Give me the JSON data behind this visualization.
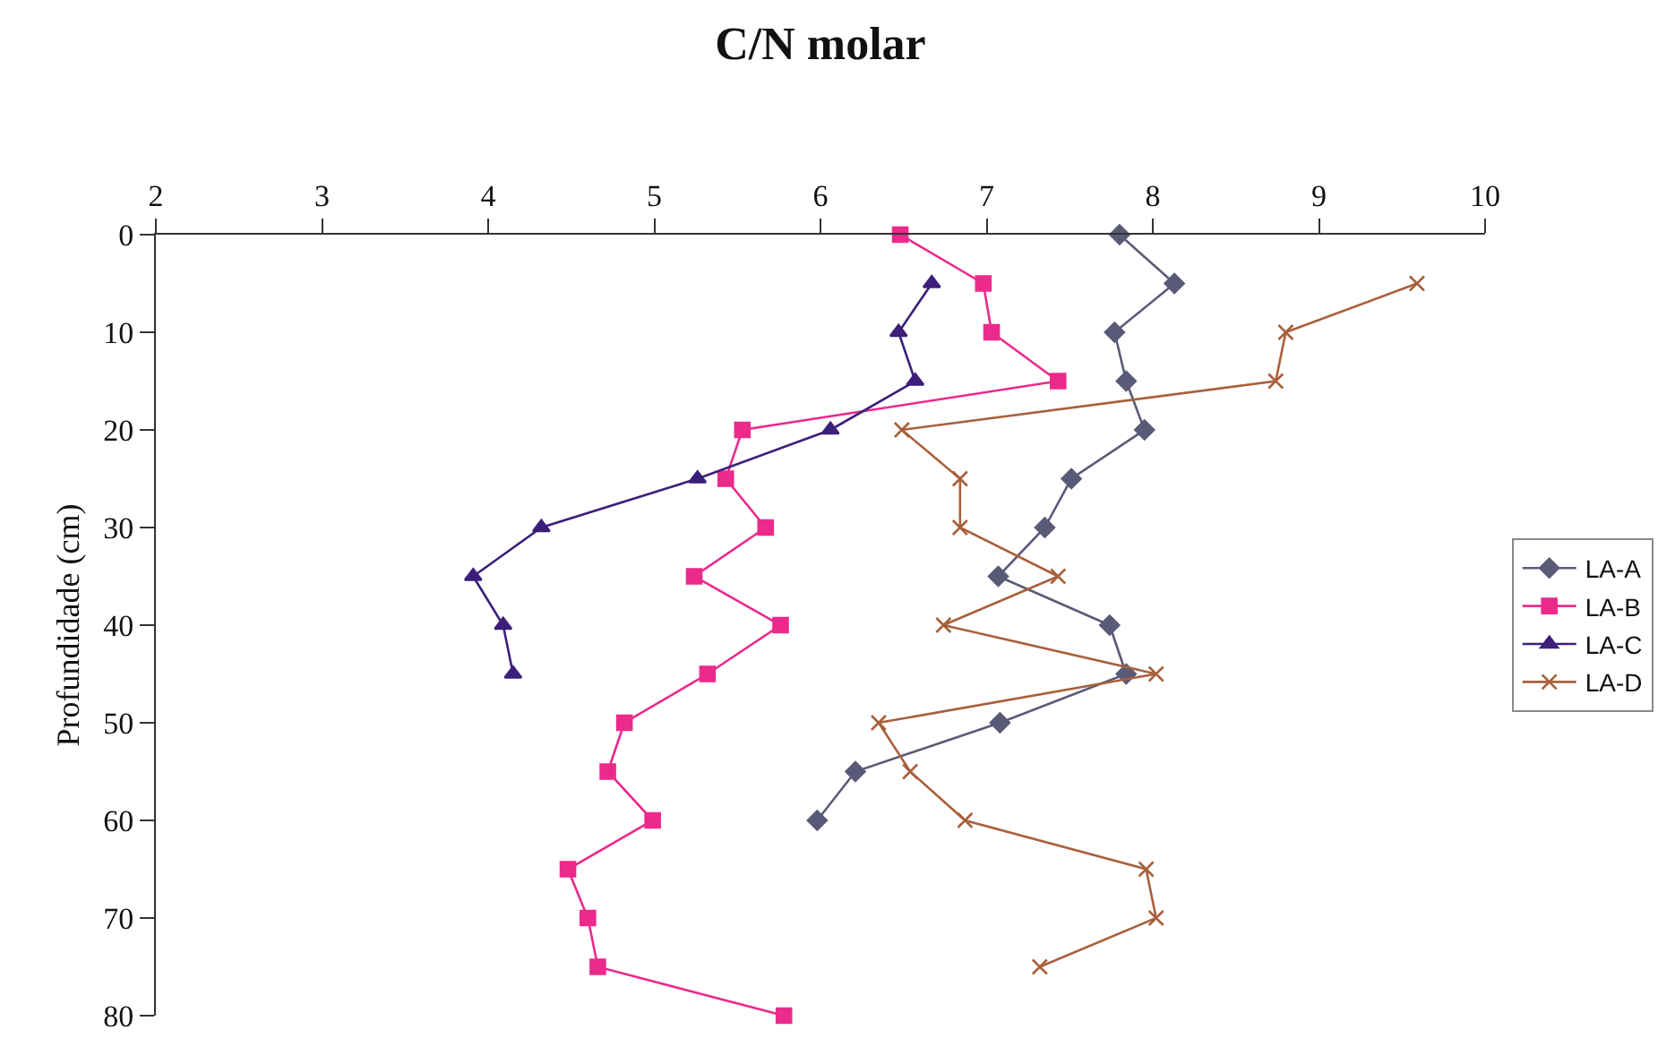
{
  "chart_data": {
    "type": "line",
    "title": "C/N molar",
    "ylabel": "Profundidade (cm)",
    "xlim": [
      2,
      10
    ],
    "xticks": [
      2,
      3,
      4,
      5,
      6,
      7,
      8,
      9,
      10
    ],
    "ylim": [
      80,
      0
    ],
    "yticks": [
      0,
      10,
      20,
      30,
      40,
      50,
      60,
      70,
      80
    ],
    "legend": "right",
    "line_style": "solid",
    "series": [
      {
        "name": "LA-A",
        "color": "#5a5a78",
        "marker": "diamond",
        "x": [
          7.8,
          8.13,
          7.77,
          7.84,
          7.95,
          7.51,
          7.35,
          7.07,
          7.74,
          7.84,
          7.08,
          6.21,
          5.98
        ],
        "values": [
          0,
          5,
          10,
          15,
          20,
          25,
          30,
          35,
          40,
          45,
          50,
          55,
          60
        ]
      },
      {
        "name": "LA-B",
        "color": "#ec2a8c",
        "marker": "square",
        "x": [
          6.48,
          6.98,
          7.03,
          7.43,
          5.53,
          5.43,
          5.67,
          5.24,
          5.76,
          5.32,
          4.82,
          4.72,
          4.99,
          4.48,
          4.6,
          4.66,
          5.78
        ],
        "values": [
          0,
          5,
          10,
          15,
          20,
          25,
          30,
          35,
          40,
          45,
          50,
          55,
          60,
          65,
          70,
          75,
          80
        ]
      },
      {
        "name": "LA-C",
        "color": "#3b1f7a",
        "marker": "triangle",
        "x": [
          6.67,
          6.47,
          6.57,
          6.06,
          5.26,
          4.32,
          3.91,
          4.09,
          4.15
        ],
        "values": [
          5,
          10,
          15,
          20,
          25,
          30,
          35,
          40,
          45
        ]
      },
      {
        "name": "LA-D",
        "color": "#a8603c",
        "marker": "cross",
        "x": [
          9.59,
          8.8,
          8.74,
          6.49,
          6.84,
          6.84,
          7.43,
          6.74,
          8.02,
          6.35,
          6.54,
          6.87,
          7.96,
          8.02,
          7.32
        ],
        "values": [
          5,
          10,
          15,
          20,
          25,
          30,
          35,
          40,
          45,
          50,
          55,
          60,
          65,
          70,
          75
        ]
      }
    ]
  }
}
